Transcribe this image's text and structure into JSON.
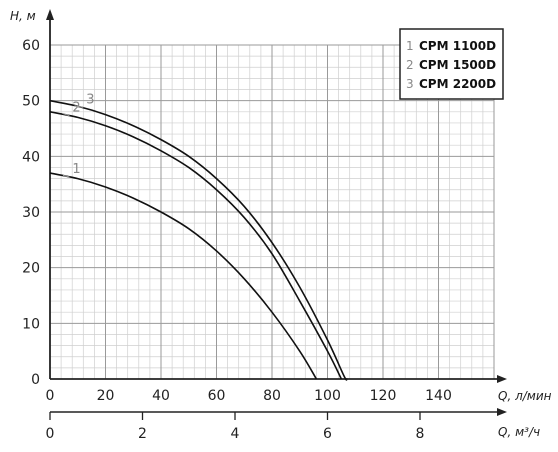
{
  "chart_data": {
    "type": "line",
    "y_axis_label": "H, м",
    "x_axis_label": "Q, л/мин",
    "x2_axis_label": "Q, м³/ч",
    "xlim": [
      0,
      160
    ],
    "ylim": [
      0,
      60
    ],
    "x_ticks": [
      "0",
      "20",
      "40",
      "60",
      "80",
      "100",
      "120",
      "140"
    ],
    "y_ticks": [
      "0",
      "10",
      "20",
      "30",
      "40",
      "50",
      "60"
    ],
    "x2_ticks": [
      "0",
      "2",
      "4",
      "6",
      "8"
    ],
    "x2_ticks_values": [
      0,
      2,
      4,
      6,
      8
    ],
    "grid": true,
    "legend_position": "top-right",
    "series": [
      {
        "id": "1",
        "name": "CPM 1100D",
        "points": [
          [
            0,
            37
          ],
          [
            10,
            36
          ],
          [
            20,
            34.5
          ],
          [
            30,
            32.5
          ],
          [
            40,
            30
          ],
          [
            50,
            27
          ],
          [
            60,
            23
          ],
          [
            70,
            18
          ],
          [
            80,
            12
          ],
          [
            90,
            5
          ],
          [
            96,
            0
          ]
        ]
      },
      {
        "id": "2",
        "name": "CPM 1500D",
        "points": [
          [
            0,
            48
          ],
          [
            10,
            47
          ],
          [
            20,
            45.5
          ],
          [
            30,
            43.5
          ],
          [
            40,
            41
          ],
          [
            50,
            38
          ],
          [
            60,
            34
          ],
          [
            70,
            29
          ],
          [
            80,
            22.5
          ],
          [
            90,
            14
          ],
          [
            100,
            5
          ],
          [
            105,
            0
          ]
        ]
      },
      {
        "id": "3",
        "name": "CPM 2200D",
        "points": [
          [
            0,
            50
          ],
          [
            10,
            49
          ],
          [
            20,
            47.5
          ],
          [
            30,
            45.5
          ],
          [
            40,
            43
          ],
          [
            50,
            40
          ],
          [
            60,
            36
          ],
          [
            70,
            31
          ],
          [
            80,
            24.5
          ],
          [
            90,
            16.5
          ],
          [
            100,
            7
          ],
          [
            106,
            0.5
          ],
          [
            107,
            0
          ]
        ]
      }
    ]
  }
}
